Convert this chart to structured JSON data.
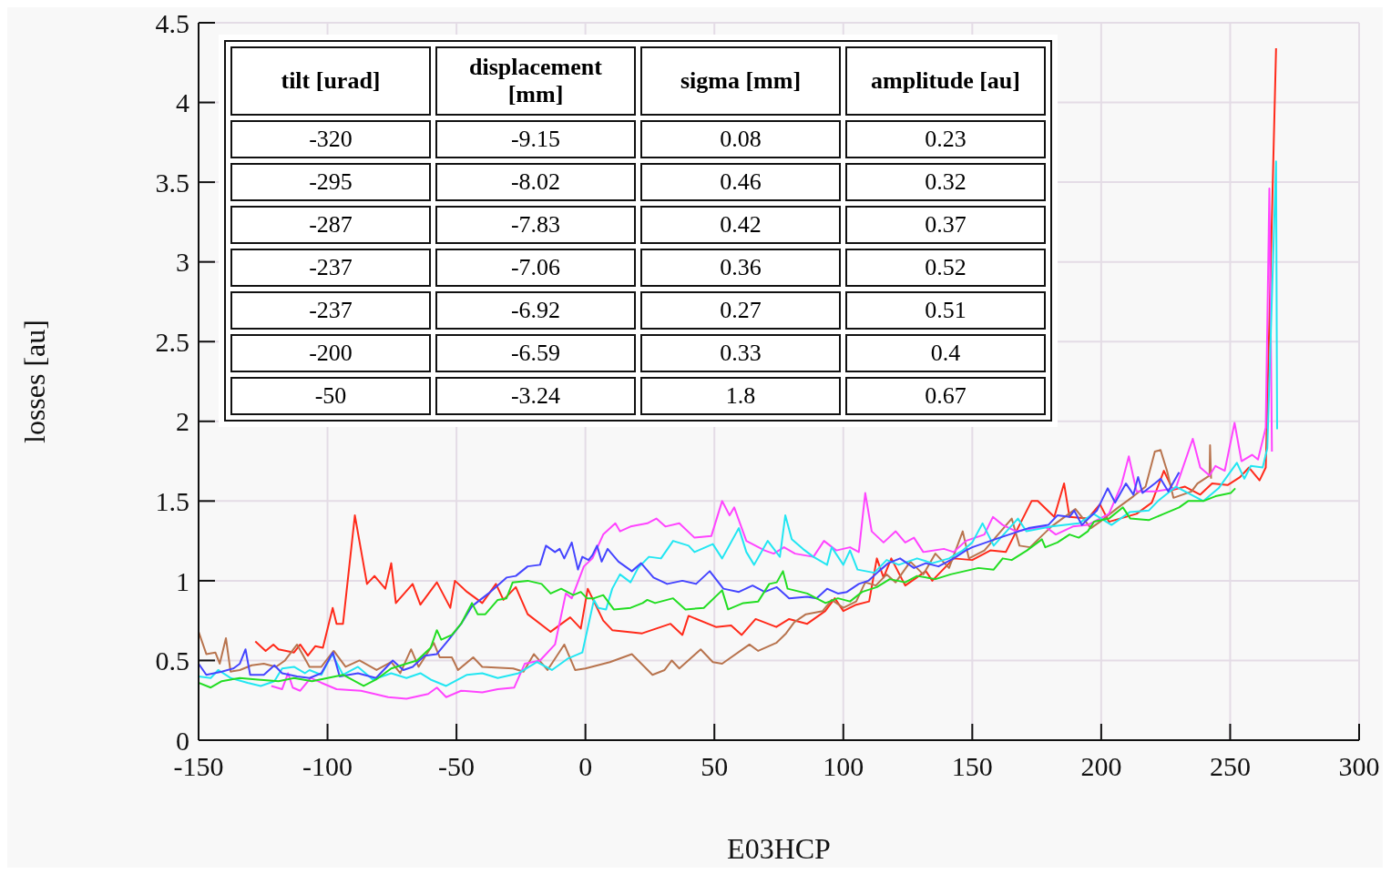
{
  "chart_data": {
    "type": "line",
    "xlabel": "E03HCP",
    "ylabel": "losses [au]",
    "xlim": [
      -150,
      300
    ],
    "xticks": [
      -150,
      -100,
      -50,
      0,
      50,
      100,
      150,
      200,
      250,
      300
    ],
    "ylim": [
      0,
      4.5
    ],
    "yticks": [
      0,
      0.5,
      1,
      1.5,
      2,
      2.5,
      3,
      3.5,
      4,
      4.5
    ],
    "grid": true,
    "marker": "none",
    "annotations": [
      "tilt [urad]",
      "displacement [mm]",
      "sigma [mm]",
      "amplitude [au]",
      "-320",
      "-9.15",
      "0.08",
      "0.23",
      "-295",
      "-8.02",
      "0.46",
      "0.32",
      "-287",
      "-7.83",
      "0.42",
      "0.37",
      "-237",
      "-7.06",
      "0.36",
      "0.52",
      "-237",
      "-6.92",
      "0.27",
      "0.51",
      "-200",
      "-6.59",
      "0.33",
      "0.4",
      "-50",
      "-3.24",
      "1.8",
      "0.67"
    ],
    "series": [
      {
        "color": "#ff2a1a",
        "x": [
          -128,
          -124,
          -121,
          -119,
          -113,
          -110.6,
          -107.6,
          -104.7,
          -101.8,
          -98,
          -96.5,
          -94,
          -89.4,
          -84.7,
          -81.8,
          -77.6,
          -75.3,
          -73.5,
          -67,
          -64,
          -57.6,
          -52.4,
          -50.6,
          -45.9,
          -40,
          -34.7,
          -31.8,
          -27,
          -22.4,
          -13.5,
          -5.9,
          -1.8,
          0.9,
          6.9,
          10.4,
          22,
          33,
          37.6,
          40,
          50.6,
          56.5,
          60.6,
          66,
          74,
          79,
          86,
          93,
          96.7,
          100,
          105,
          110,
          113,
          115.6,
          118.6,
          124,
          132,
          134.5,
          142.8,
          150,
          157,
          163,
          173,
          175.4,
          181.8,
          185.6,
          187.7,
          194.8,
          199.5,
          203,
          213.7,
          219.6,
          224.3,
          227.8,
          232.5,
          238.4,
          243,
          249,
          253.8,
          257.3,
          261.4,
          263.8,
          267.8
        ],
        "values": [
          0.62,
          0.56,
          0.6,
          0.57,
          0.55,
          0.6,
          0.53,
          0.59,
          0.58,
          0.83,
          0.73,
          0.73,
          1.41,
          0.98,
          1.03,
          0.95,
          1.11,
          0.86,
          0.98,
          0.85,
          0.99,
          0.83,
          1.0,
          0.93,
          0.86,
          0.98,
          0.88,
          0.96,
          0.79,
          0.68,
          0.77,
          0.7,
          0.95,
          0.75,
          0.69,
          0.67,
          0.73,
          0.66,
          0.78,
          0.71,
          0.72,
          0.66,
          0.76,
          0.71,
          0.76,
          0.73,
          0.81,
          0.89,
          0.81,
          0.85,
          0.87,
          1.14,
          1.02,
          1.14,
          0.97,
          1.06,
          1.0,
          1.14,
          1.13,
          1.19,
          1.18,
          1.5,
          1.5,
          1.4,
          1.61,
          1.4,
          1.39,
          1.48,
          1.37,
          1.42,
          1.49,
          1.69,
          1.57,
          1.59,
          1.54,
          1.61,
          1.6,
          1.65,
          1.71,
          1.63,
          1.71,
          4.34
        ]
      },
      {
        "color": "#b8744e",
        "x": [
          -150,
          -147,
          -143.5,
          -141.8,
          -139.4,
          -137.6,
          -134,
          -129.4,
          -124.7,
          -120,
          -116.5,
          -111.8,
          -107,
          -102.4,
          -97.6,
          -93,
          -87.6,
          -81,
          -75.3,
          -71.8,
          -67.6,
          -64.7,
          -58.8,
          -56.5,
          -51.8,
          -49.4,
          -43.5,
          -40,
          -28,
          -24,
          -20,
          -14.7,
          -8.2,
          -4,
          0,
          9.5,
          18,
          26,
          30.7,
          33.5,
          36.4,
          44.7,
          49.4,
          53,
          63.6,
          67,
          74,
          77.8,
          81,
          85.5,
          92,
          95.5,
          100,
          105,
          108.5,
          112.6,
          116.8,
          120.3,
          126,
          131,
          135.7,
          141,
          146.3,
          148.7,
          154.7,
          165.3,
          168.3,
          172.4,
          180.7,
          190,
          196,
          199.5,
          206.6,
          212.5,
          217.2,
          220.8,
          223,
          225.5,
          228,
          235,
          237.3,
          242,
          242.2,
          242.6
        ],
        "values": [
          0.68,
          0.54,
          0.55,
          0.48,
          0.64,
          0.43,
          0.44,
          0.47,
          0.48,
          0.46,
          0.5,
          0.6,
          0.46,
          0.46,
          0.56,
          0.46,
          0.5,
          0.44,
          0.49,
          0.42,
          0.57,
          0.46,
          0.61,
          0.52,
          0.52,
          0.44,
          0.52,
          0.46,
          0.45,
          0.43,
          0.54,
          0.44,
          0.6,
          0.44,
          0.45,
          0.49,
          0.54,
          0.41,
          0.44,
          0.5,
          0.45,
          0.57,
          0.49,
          0.48,
          0.6,
          0.56,
          0.61,
          0.67,
          0.74,
          0.79,
          0.81,
          0.88,
          0.83,
          0.87,
          0.99,
          0.97,
          1.04,
          0.99,
          1.12,
          1.04,
          1.17,
          1.08,
          1.31,
          1.14,
          1.19,
          1.39,
          1.22,
          1.21,
          1.34,
          1.45,
          1.33,
          1.37,
          1.46,
          1.53,
          1.59,
          1.81,
          1.82,
          1.69,
          1.52,
          1.56,
          1.61,
          1.66,
          1.85,
          1.64
        ]
      },
      {
        "color": "#ff44ff",
        "x": [
          -121.8,
          -117.6,
          -115.3,
          -113.5,
          -110.6,
          -106.5,
          -102.4,
          -96.5,
          -87,
          -76.5,
          -69.4,
          -61,
          -57.6,
          -54,
          -48.2,
          -40,
          -34,
          -27.6,
          -23.5,
          -17.6,
          -11.8,
          -7.6,
          -5.3,
          -0.6,
          2.7,
          6.9,
          11.6,
          13.4,
          17.5,
          24,
          27.5,
          31,
          36.4,
          42.3,
          48.8,
          53,
          55.9,
          57.7,
          62.4,
          69.5,
          73,
          77,
          81.3,
          88.4,
          92.5,
          97.3,
          102.6,
          106,
          108.5,
          111,
          115.6,
          120.3,
          124,
          127.4,
          131,
          139,
          142.8,
          147.5,
          154.7,
          158,
          161.8,
          167,
          178.3,
          182.4,
          189,
          194.8,
          203,
          207.8,
          210.7,
          213.7,
          220.8,
          228.9,
          235.5,
          238.4,
          242,
          244.3,
          247.9,
          251.7,
          254.4,
          258.5,
          260.8,
          263.8,
          265.2,
          266.2
        ],
        "values": [
          0.34,
          0.32,
          0.42,
          0.33,
          0.31,
          0.39,
          0.36,
          0.32,
          0.31,
          0.27,
          0.26,
          0.29,
          0.33,
          0.27,
          0.31,
          0.3,
          0.32,
          0.33,
          0.48,
          0.5,
          0.6,
          0.92,
          0.89,
          1.09,
          1.14,
          1.29,
          1.36,
          1.31,
          1.34,
          1.36,
          1.39,
          1.34,
          1.36,
          1.27,
          1.28,
          1.5,
          1.41,
          1.46,
          1.25,
          1.19,
          1.17,
          1.21,
          1.17,
          1.15,
          1.25,
          1.19,
          1.21,
          1.18,
          1.55,
          1.31,
          1.24,
          1.31,
          1.24,
          1.27,
          1.18,
          1.2,
          1.18,
          1.25,
          1.29,
          1.4,
          1.35,
          1.31,
          1.34,
          1.29,
          1.34,
          1.35,
          1.42,
          1.6,
          1.78,
          1.56,
          1.56,
          1.58,
          1.89,
          1.71,
          1.66,
          1.72,
          1.69,
          1.99,
          1.75,
          1.79,
          1.76,
          1.96,
          3.46,
          1.81
        ]
      },
      {
        "color": "#22e6f2",
        "x": [
          -150,
          -145.3,
          -142.4,
          -137.6,
          -131,
          -125.9,
          -120.6,
          -117.6,
          -113,
          -108.8,
          -107,
          -102.4,
          -98.2,
          -94,
          -88.2,
          -82.4,
          -75.3,
          -69.4,
          -64,
          -60,
          -54,
          -49.4,
          -45.9,
          -40,
          -34,
          -25.9,
          -18.8,
          -13,
          -7,
          -1.2,
          3.3,
          5,
          8,
          10.4,
          13.4,
          17.5,
          20.4,
          24.6,
          29.3,
          34,
          40,
          42.3,
          49.4,
          53,
          59.5,
          62.4,
          65.4,
          70.7,
          75.4,
          77.5,
          80,
          84.3,
          88.4,
          93.7,
          95.5,
          100,
          102.6,
          105.5,
          112,
          116.8,
          121.5,
          128.6,
          134.5,
          141,
          146.3,
          150,
          154,
          158.3,
          167.7,
          171,
          180.7,
          191.3,
          197,
          204,
          211,
          218.4,
          222,
          229,
          239.6,
          245.5,
          252.6,
          255.5,
          258,
          262.6,
          264.4,
          267.8,
          268.2
        ],
        "values": [
          0.4,
          0.39,
          0.44,
          0.39,
          0.36,
          0.34,
          0.37,
          0.45,
          0.46,
          0.42,
          0.44,
          0.41,
          0.54,
          0.41,
          0.46,
          0.38,
          0.42,
          0.39,
          0.42,
          0.38,
          0.34,
          0.38,
          0.41,
          0.42,
          0.39,
          0.42,
          0.49,
          0.44,
          0.51,
          0.55,
          0.88,
          0.83,
          0.82,
          0.95,
          1.04,
          0.99,
          1.08,
          1.15,
          1.14,
          1.25,
          1.22,
          1.18,
          1.23,
          1.14,
          1.33,
          1.18,
          1.1,
          1.25,
          1.15,
          1.41,
          1.26,
          1.2,
          1.15,
          1.1,
          1.21,
          1.1,
          1.19,
          1.07,
          1.05,
          1.13,
          1.1,
          1.14,
          1.11,
          1.14,
          1.19,
          1.24,
          1.36,
          1.22,
          1.39,
          1.31,
          1.34,
          1.36,
          1.42,
          1.35,
          1.43,
          1.44,
          1.5,
          1.59,
          1.5,
          1.58,
          1.74,
          1.64,
          1.72,
          1.71,
          1.83,
          3.63,
          1.95
        ]
      },
      {
        "color": "#4444ff",
        "x": [
          -150,
          -147,
          -141,
          -136.5,
          -134,
          -131.8,
          -130,
          -124.7,
          -120.6,
          -117.6,
          -111.8,
          -107,
          -102.4,
          -97.9,
          -95.3,
          -88.2,
          -81.2,
          -74.7,
          -70.6,
          -67,
          -62.4,
          -57.6,
          -53,
          -48.2,
          -44,
          -37.6,
          -30.6,
          -27,
          -22.4,
          -17.6,
          -15.3,
          -11.8,
          -10,
          -8.2,
          -5.3,
          -2.9,
          -1.2,
          1.2,
          2.7,
          4.5,
          6.3,
          8.6,
          12.8,
          18,
          21.6,
          26.4,
          31.7,
          37.6,
          42.9,
          48.2,
          53.5,
          59.5,
          64.8,
          69.5,
          74.2,
          79,
          86,
          89.6,
          93.7,
          97.9,
          101.4,
          106,
          109.7,
          113.8,
          117.4,
          122,
          127.4,
          132,
          136.9,
          142.8,
          147.5,
          150,
          160.6,
          171.8,
          179.5,
          183,
          187.7,
          189.5,
          192.5,
          198.3,
          202.5,
          205.4,
          209.6,
          212.5,
          214.3,
          216,
          220.8,
          223,
          226,
          230.2
        ],
        "values": [
          0.48,
          0.41,
          0.43,
          0.45,
          0.48,
          0.57,
          0.41,
          0.41,
          0.47,
          0.42,
          0.4,
          0.39,
          0.42,
          0.55,
          0.4,
          0.42,
          0.39,
          0.5,
          0.44,
          0.46,
          0.53,
          0.54,
          0.63,
          0.73,
          0.84,
          0.92,
          1.02,
          1.03,
          1.09,
          1.1,
          1.22,
          1.18,
          1.2,
          1.14,
          1.24,
          1.07,
          1.15,
          1.13,
          1.16,
          1.22,
          1.12,
          1.2,
          1.12,
          1.06,
          1.11,
          1.02,
          0.98,
          1.0,
          0.98,
          1.06,
          0.95,
          0.93,
          0.97,
          0.93,
          0.96,
          0.89,
          0.9,
          0.89,
          0.95,
          0.92,
          0.93,
          0.98,
          1.0,
          1.06,
          1.11,
          1.14,
          1.08,
          1.11,
          1.09,
          1.14,
          1.19,
          1.21,
          1.27,
          1.33,
          1.35,
          1.41,
          1.4,
          1.44,
          1.35,
          1.44,
          1.58,
          1.49,
          1.61,
          1.54,
          1.65,
          1.55,
          1.61,
          1.64,
          1.56,
          1.68
        ]
      },
      {
        "color": "#22dd22",
        "x": [
          -150,
          -145.3,
          -141,
          -134,
          -127,
          -119,
          -113,
          -106,
          -100,
          -94,
          -86,
          -81.2,
          -75.3,
          -69.4,
          -65.3,
          -60,
          -57.6,
          -55.9,
          -51.8,
          -48.2,
          -44,
          -41.8,
          -38.8,
          -34,
          -30.6,
          -28.2,
          -22.4,
          -17,
          -13.5,
          -9.4,
          -4.7,
          -1.8,
          0.6,
          3.3,
          6.9,
          11,
          17.5,
          22.2,
          24,
          27,
          34,
          38.8,
          45.9,
          53,
          55.3,
          61.2,
          67,
          71.3,
          74.2,
          76.6,
          78.4,
          86,
          93.1,
          97.9,
          102.6,
          107.3,
          113,
          118,
          124,
          128.6,
          135.7,
          141.6,
          147,
          152.4,
          158.3,
          161.8,
          165.3,
          171.2,
          177,
          178.3,
          183,
          187.7,
          191.3,
          194.8,
          197.2,
          203,
          208.4,
          211.3,
          218.4,
          224.3,
          230.2,
          233.7,
          239.6,
          244.3,
          250.2,
          252
        ],
        "values": [
          0.36,
          0.33,
          0.37,
          0.39,
          0.38,
          0.37,
          0.39,
          0.37,
          0.39,
          0.41,
          0.34,
          0.38,
          0.45,
          0.48,
          0.5,
          0.58,
          0.69,
          0.63,
          0.66,
          0.73,
          0.86,
          0.79,
          0.79,
          0.88,
          0.89,
          0.99,
          1.0,
          0.98,
          0.92,
          0.95,
          0.91,
          0.93,
          0.89,
          0.89,
          0.91,
          0.82,
          0.83,
          0.86,
          0.88,
          0.86,
          0.89,
          0.82,
          0.83,
          0.94,
          0.82,
          0.86,
          0.87,
          0.98,
          0.99,
          1.06,
          0.95,
          0.92,
          0.86,
          0.89,
          0.87,
          0.93,
          0.96,
          1.01,
          0.99,
          1.03,
          1.01,
          1.04,
          1.06,
          1.08,
          1.07,
          1.14,
          1.13,
          1.19,
          1.26,
          1.21,
          1.24,
          1.29,
          1.27,
          1.31,
          1.37,
          1.39,
          1.46,
          1.39,
          1.38,
          1.42,
          1.46,
          1.5,
          1.5,
          1.53,
          1.55,
          1.58
        ]
      }
    ]
  }
}
